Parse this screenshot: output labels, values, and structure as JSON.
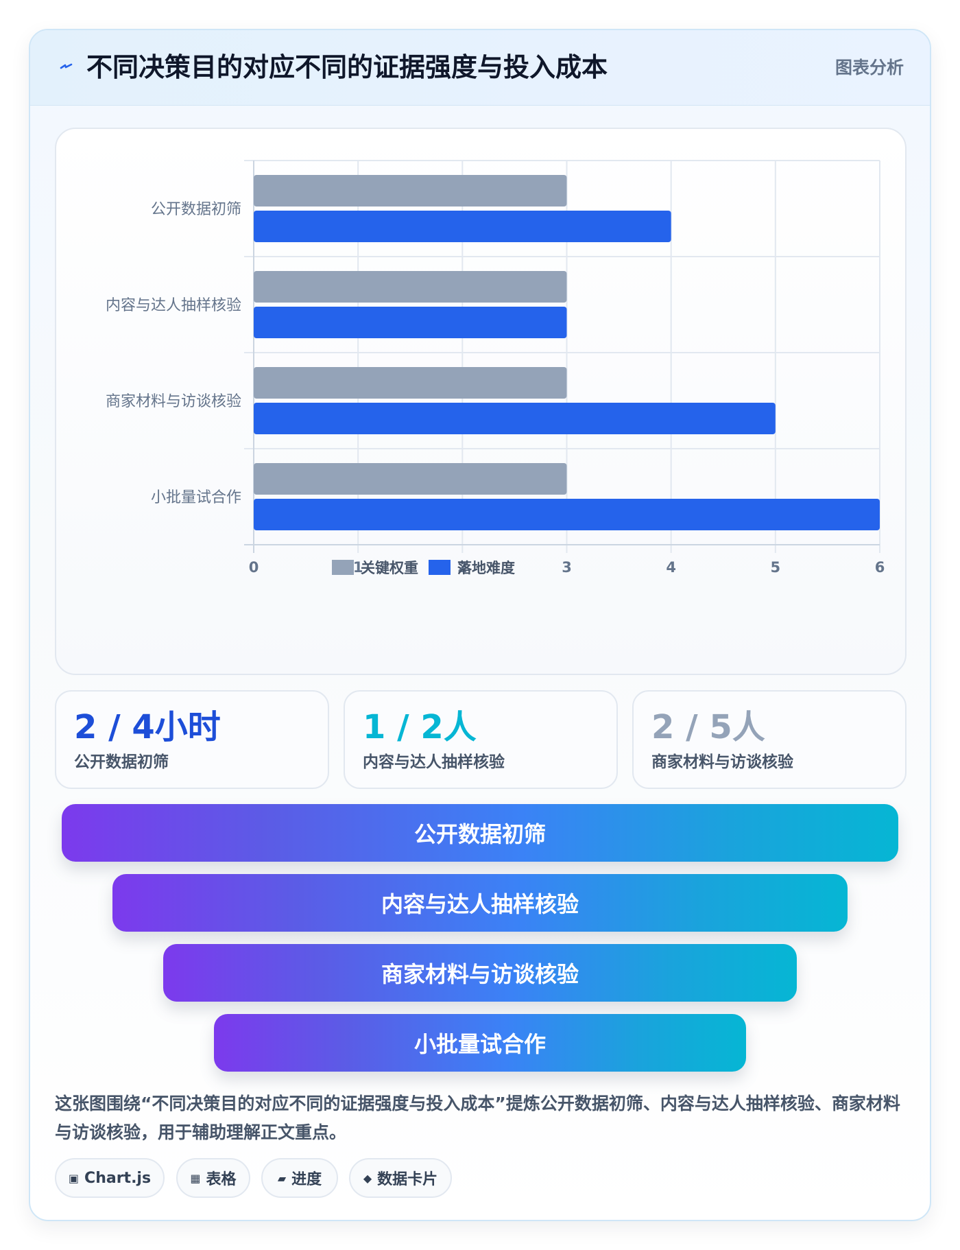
{
  "header": {
    "title": "不同决策目的对应不同的证据强度与投入成本",
    "tag": "图表分析"
  },
  "chart_data": {
    "type": "bar",
    "orientation": "horizontal",
    "categories": [
      "公开数据初筛",
      "内容与达人抽样核验",
      "商家材料与访谈核验",
      "小批量试合作"
    ],
    "series": [
      {
        "name": "关键权重",
        "values": [
          3,
          3,
          3,
          3
        ],
        "color": "#94a3b8"
      },
      {
        "name": "落地难度",
        "values": [
          4,
          3,
          5,
          6
        ],
        "color": "#2563eb"
      }
    ],
    "xlim": [
      0,
      6
    ],
    "xticks": [
      "0",
      "1",
      "2",
      "3",
      "4",
      "5",
      "6"
    ],
    "grid": true,
    "legend": "bottom"
  },
  "stats": [
    {
      "value": "2 / 4小时",
      "label": "公开数据初筛",
      "color": "#1d4ed8"
    },
    {
      "value": "1 / 2人",
      "label": "内容与达人抽样核验",
      "color": "#06b6d4"
    },
    {
      "value": "2 / 5人",
      "label": "商家材料与访谈核验",
      "color": "#94a3b8"
    }
  ],
  "funnel": [
    {
      "label": "公开数据初筛"
    },
    {
      "label": "内容与达人抽样核验"
    },
    {
      "label": "商家材料与访谈核验"
    },
    {
      "label": "小批量试合作"
    }
  ],
  "description": "这张图围绕“不同决策目的对应不同的证据强度与投入成本”提炼公开数据初筛、内容与达人抽样核验、商家材料与访谈核验，用于辅助理解正文重点。",
  "chips": [
    {
      "icon": "▣",
      "icon_name": "chip-square-icon",
      "label": "Chart.js"
    },
    {
      "icon": "▦",
      "icon_name": "table-icon",
      "label": "表格"
    },
    {
      "icon": "▰",
      "icon_name": "progress-icon",
      "label": "进度"
    },
    {
      "icon": "◆",
      "icon_name": "diamond-icon",
      "label": "数据卡片"
    }
  ]
}
